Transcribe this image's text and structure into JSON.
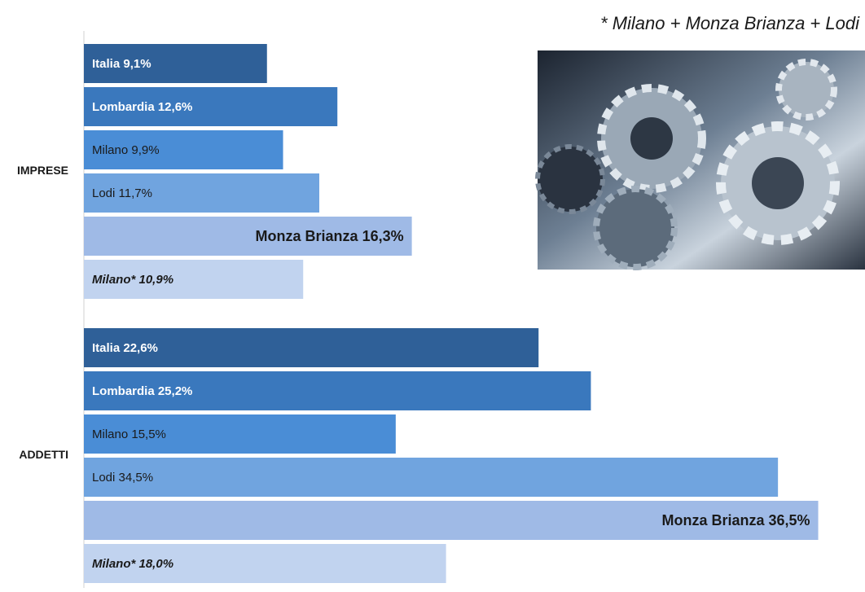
{
  "chart_data": {
    "type": "bar",
    "orientation": "horizontal",
    "annotation": "* Milano + Monza Brianza + Lodi",
    "categories": [
      "IMPRESE",
      "ADDETTI"
    ],
    "series": [
      {
        "color": "#2f6098",
        "values": [
          9.1,
          22.6
        ],
        "value_labels": [
          "Italia 9,1%",
          "Italia 22,6%"
        ]
      },
      {
        "color": "#3a78bd",
        "values": [
          12.6,
          25.2
        ],
        "value_labels": [
          "Lombardia 12,6%",
          "Lombardia 25,2%"
        ]
      },
      {
        "color": "#4a8dd6",
        "values": [
          9.9,
          15.5
        ],
        "value_labels": [
          "Milano 9,9%",
          "Milano 15,5%"
        ]
      },
      {
        "color": "#70a4df",
        "values": [
          11.7,
          34.5
        ],
        "value_labels": [
          "Lodi 11,7%",
          "Lodi 34,5%"
        ]
      },
      {
        "color": "#9fbae6",
        "values": [
          16.3,
          36.5
        ],
        "value_labels": [
          "Monza Brianza 16,3%",
          "Monza Brianza 36,5%"
        ]
      },
      {
        "color": "#c1d3ef",
        "values": [
          10.9,
          18.0
        ],
        "value_labels": [
          "Milano* 10,9%",
          "Milano* 18,0%"
        ]
      }
    ]
  }
}
